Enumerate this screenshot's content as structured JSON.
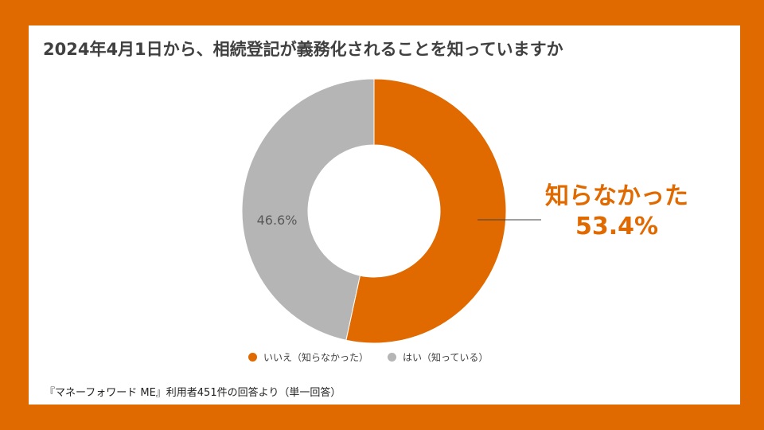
{
  "colors": {
    "background": "#E06A00",
    "accent": "#E06A00",
    "gray": "#B5B5B5",
    "panel": "#FFFFFF"
  },
  "title": "2024年4月1日から、相続登記が義務化されることを知っていますか",
  "chart_data": {
    "type": "pie",
    "donut": true,
    "title": "2024年4月1日から、相続登記が義務化されることを知っていますか",
    "slices": [
      {
        "label": "いいえ（知らなかった）",
        "value": 53.4,
        "color": "#E06A00"
      },
      {
        "label": "はい（知っている）",
        "value": 46.6,
        "color": "#B5B5B5"
      }
    ],
    "data_labels": [
      "",
      "46.6%"
    ],
    "legend_position": "bottom"
  },
  "callout": {
    "label": "知らなかった",
    "value": "53.4%"
  },
  "footnote": "『マネーフォワード ME』利用者451件の回答より（単一回答）"
}
